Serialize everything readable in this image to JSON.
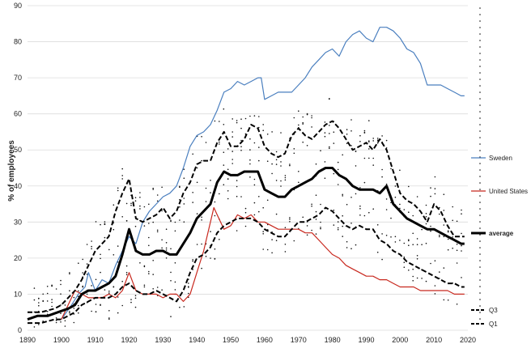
{
  "chart_data": {
    "type": "line",
    "title": "",
    "xlabel": "",
    "ylabel": "% of employees",
    "xlim": [
      1890,
      2020
    ],
    "ylim": [
      0,
      90
    ],
    "x_ticks": [
      1890,
      1900,
      1910,
      1920,
      1930,
      1940,
      1950,
      1960,
      1970,
      1980,
      1990,
      2000,
      2010,
      2020
    ],
    "y_ticks": [
      0,
      10,
      20,
      30,
      40,
      50,
      60,
      70,
      80,
      90
    ],
    "grid": true,
    "legend": [
      "Sweden",
      "United States",
      "average",
      "Q3",
      "Q1"
    ],
    "series": [
      {
        "name": "Sweden",
        "color": "#4a7fbf",
        "style": "solid",
        "x": [
          1900,
          1903,
          1905,
          1907,
          1908,
          1910,
          1912,
          1914,
          1916,
          1918,
          1920,
          1922,
          1924,
          1926,
          1928,
          1930,
          1932,
          1934,
          1936,
          1938,
          1940,
          1942,
          1944,
          1946,
          1948,
          1950,
          1952,
          1954,
          1956,
          1958,
          1959,
          1960,
          1962,
          1964,
          1966,
          1968,
          1970,
          1972,
          1974,
          1976,
          1978,
          1980,
          1982,
          1984,
          1986,
          1988,
          1990,
          1992,
          1994,
          1996,
          1998,
          2000,
          2002,
          2004,
          2006,
          2008,
          2010,
          2012,
          2014,
          2016,
          2018,
          2019
        ],
        "values": [
          3,
          7,
          10,
          12,
          16,
          11,
          14,
          13,
          18,
          22,
          26,
          24,
          30,
          33,
          35,
          37,
          38,
          40,
          45,
          51,
          54,
          55,
          57,
          61,
          66,
          67,
          69,
          68,
          69,
          70,
          70,
          64,
          65,
          66,
          66,
          66,
          68,
          70,
          73,
          75,
          77,
          78,
          76,
          80,
          82,
          83,
          81,
          80,
          84,
          84,
          83,
          81,
          78,
          77,
          74,
          68,
          68,
          68,
          67,
          66,
          65,
          65
        ]
      },
      {
        "name": "United States",
        "color": "#c8281e",
        "style": "solid",
        "x": [
          1900,
          1902,
          1904,
          1906,
          1908,
          1910,
          1912,
          1914,
          1916,
          1918,
          1920,
          1922,
          1924,
          1926,
          1928,
          1930,
          1932,
          1934,
          1936,
          1938,
          1940,
          1942,
          1944,
          1945,
          1946,
          1948,
          1950,
          1952,
          1954,
          1956,
          1958,
          1960,
          1962,
          1964,
          1966,
          1968,
          1970,
          1972,
          1974,
          1976,
          1978,
          1980,
          1982,
          1984,
          1986,
          1988,
          1990,
          1992,
          1994,
          1996,
          1998,
          2000,
          2002,
          2004,
          2006,
          2008,
          2010,
          2012,
          2014,
          2016,
          2018,
          2019
        ],
        "values": [
          3,
          7,
          11,
          10,
          9,
          9,
          9,
          10,
          9,
          11,
          16,
          11,
          10,
          10,
          10,
          9,
          10,
          10,
          8,
          10,
          16,
          22,
          30,
          34,
          32,
          28,
          29,
          32,
          31,
          32,
          30,
          30,
          29,
          28,
          28,
          28,
          28,
          27,
          27,
          25,
          23,
          21,
          20,
          18,
          17,
          16,
          15,
          15,
          14,
          14,
          13,
          12,
          12,
          12,
          11,
          11,
          11,
          11,
          11,
          10,
          10,
          10
        ]
      },
      {
        "name": "average",
        "color": "#000000",
        "style": "thick",
        "x": [
          1890,
          1893,
          1896,
          1899,
          1902,
          1904,
          1906,
          1908,
          1910,
          1912,
          1914,
          1916,
          1918,
          1920,
          1922,
          1924,
          1926,
          1928,
          1930,
          1932,
          1934,
          1936,
          1938,
          1940,
          1942,
          1944,
          1946,
          1948,
          1950,
          1952,
          1954,
          1956,
          1958,
          1960,
          1962,
          1964,
          1966,
          1968,
          1970,
          1972,
          1974,
          1976,
          1978,
          1980,
          1982,
          1984,
          1986,
          1988,
          1990,
          1992,
          1994,
          1996,
          1998,
          2000,
          2002,
          2004,
          2006,
          2008,
          2010,
          2012,
          2014,
          2016,
          2018,
          2019
        ],
        "values": [
          3,
          4,
          4,
          5,
          6,
          7,
          10,
          11,
          11,
          12,
          13,
          15,
          21,
          28,
          22,
          21,
          21,
          22,
          22,
          21,
          21,
          24,
          27,
          31,
          33,
          35,
          41,
          44,
          43,
          43,
          44,
          44,
          44,
          39,
          38,
          37,
          37,
          39,
          40,
          41,
          42,
          44,
          45,
          45,
          43,
          42,
          40,
          39,
          39,
          39,
          38,
          40,
          35,
          33,
          31,
          30,
          29,
          28,
          28,
          27,
          26,
          25,
          24,
          24
        ]
      },
      {
        "name": "Q3",
        "color": "#000000",
        "style": "dashed",
        "x": [
          1890,
          1894,
          1898,
          1900,
          1902,
          1904,
          1906,
          1908,
          1910,
          1912,
          1914,
          1916,
          1918,
          1920,
          1922,
          1924,
          1926,
          1928,
          1930,
          1932,
          1934,
          1936,
          1938,
          1940,
          1942,
          1944,
          1946,
          1948,
          1950,
          1952,
          1954,
          1956,
          1958,
          1960,
          1962,
          1964,
          1966,
          1968,
          1970,
          1972,
          1974,
          1976,
          1978,
          1980,
          1982,
          1984,
          1986,
          1988,
          1990,
          1992,
          1994,
          1996,
          1998,
          2000,
          2002,
          2004,
          2006,
          2008,
          2010,
          2012,
          2014,
          2016,
          2018,
          2019
        ],
        "values": [
          5,
          5,
          6,
          7,
          9,
          11,
          14,
          18,
          22,
          24,
          26,
          33,
          38,
          42,
          31,
          30,
          31,
          32,
          34,
          31,
          33,
          38,
          41,
          46,
          47,
          47,
          52,
          55,
          51,
          51,
          53,
          57,
          56,
          51,
          49,
          48,
          49,
          54,
          56,
          54,
          53,
          55,
          57,
          58,
          56,
          53,
          50,
          51,
          52,
          50,
          53,
          50,
          44,
          38,
          36,
          35,
          33,
          30,
          35,
          33,
          29,
          26,
          26,
          26
        ]
      },
      {
        "name": "Q1",
        "color": "#000000",
        "style": "dashed",
        "x": [
          1890,
          1894,
          1898,
          1900,
          1902,
          1904,
          1906,
          1908,
          1910,
          1912,
          1914,
          1916,
          1918,
          1920,
          1922,
          1924,
          1926,
          1928,
          1930,
          1932,
          1934,
          1936,
          1938,
          1940,
          1942,
          1944,
          1946,
          1948,
          1950,
          1952,
          1954,
          1956,
          1958,
          1960,
          1962,
          1964,
          1966,
          1968,
          1970,
          1972,
          1974,
          1976,
          1978,
          1980,
          1982,
          1984,
          1986,
          1988,
          1990,
          1992,
          1994,
          1996,
          1998,
          2000,
          2002,
          2004,
          2006,
          2008,
          2010,
          2012,
          2014,
          2016,
          2018,
          2019
        ],
        "values": [
          2,
          2,
          3,
          3,
          4,
          5,
          7,
          8,
          9,
          9,
          9,
          10,
          12,
          13,
          11,
          10,
          10,
          11,
          10,
          9,
          8,
          11,
          16,
          20,
          21,
          23,
          27,
          29,
          30,
          31,
          31,
          31,
          30,
          28,
          27,
          26,
          26,
          28,
          30,
          30,
          31,
          32,
          34,
          33,
          31,
          29,
          28,
          29,
          28,
          28,
          25,
          24,
          22,
          21,
          19,
          18,
          17,
          16,
          15,
          14,
          13,
          13,
          12,
          12
        ]
      }
    ]
  }
}
